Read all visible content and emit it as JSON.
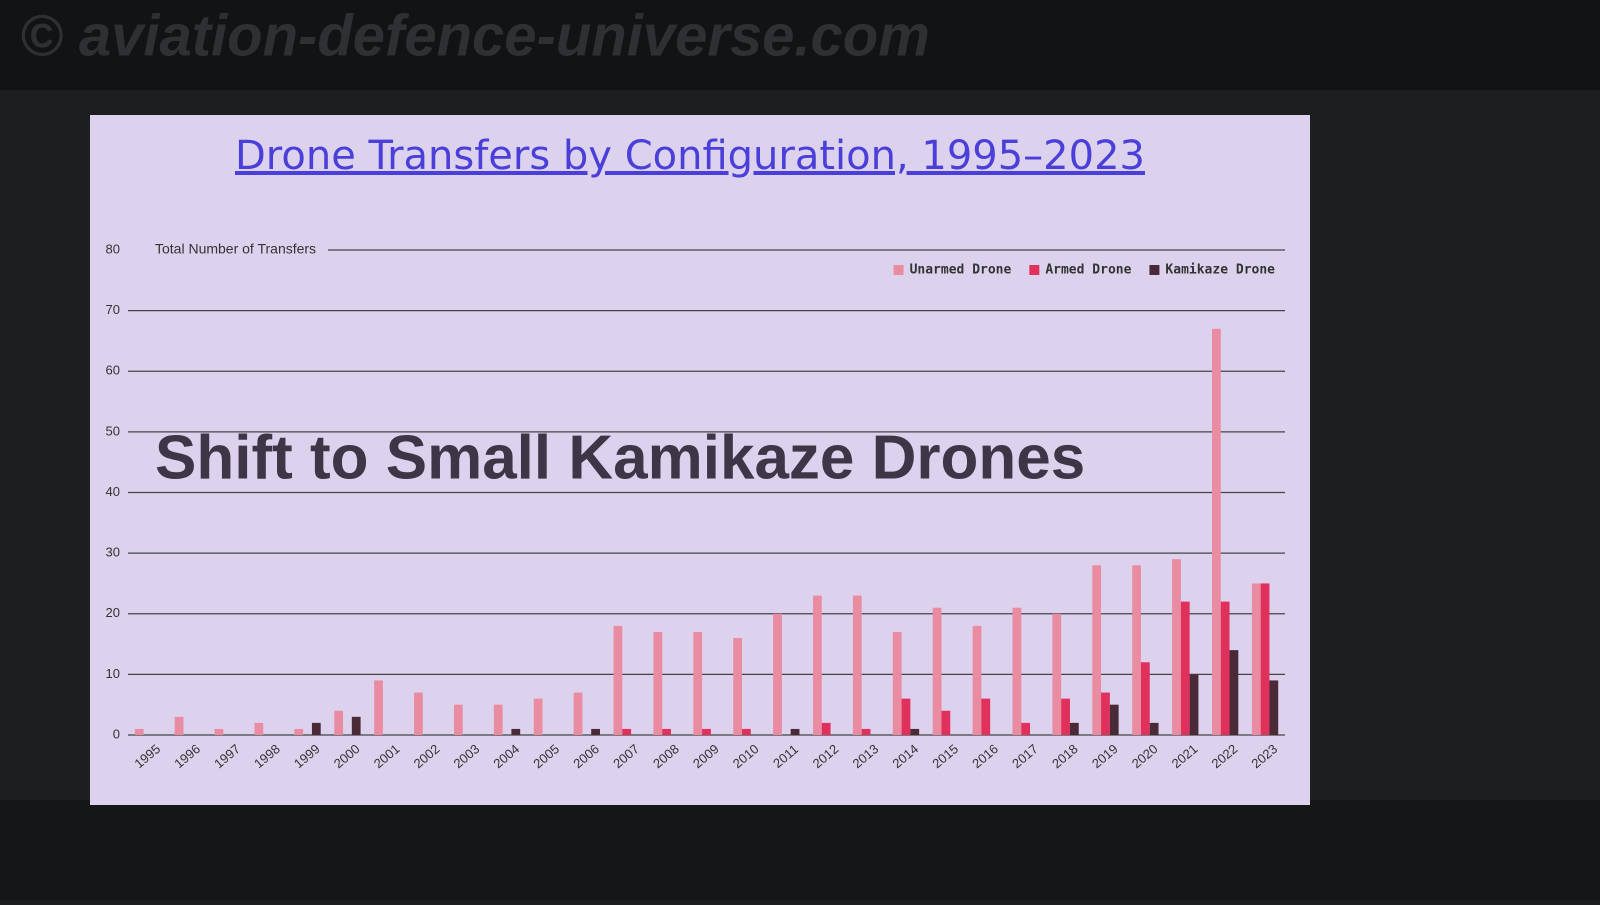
{
  "watermark": "© aviation-defence-universe.com",
  "chart_data": {
    "type": "bar",
    "title": "Drone Transfers by Configuration, 1995–2023",
    "y_label": "Total Number of Transfers",
    "annotation": "Shift to Small Kamikaze Drones",
    "categories": [
      "1995",
      "1996",
      "1997",
      "1998",
      "1999",
      "2000",
      "2001",
      "2002",
      "2003",
      "2004",
      "2005",
      "2006",
      "2007",
      "2008",
      "2009",
      "2010",
      "2011",
      "2012",
      "2013",
      "2014",
      "2015",
      "2016",
      "2017",
      "2018",
      "2019",
      "2020",
      "2021",
      "2022",
      "2023"
    ],
    "series": [
      {
        "name": "Unarmed Drone",
        "color": "#e98ca2",
        "values": [
          1,
          3,
          1,
          2,
          1,
          4,
          9,
          7,
          5,
          5,
          6,
          7,
          18,
          17,
          17,
          16,
          20,
          23,
          23,
          17,
          21,
          18,
          21,
          20,
          28,
          28,
          29,
          67,
          25
        ]
      },
      {
        "name": "Armed Drone",
        "color": "#e0305c",
        "values": [
          0,
          0,
          0,
          0,
          0,
          0,
          0,
          0,
          0,
          0,
          0,
          0,
          1,
          1,
          1,
          1,
          0,
          2,
          1,
          6,
          4,
          6,
          2,
          6,
          7,
          12,
          22,
          22,
          25
        ]
      },
      {
        "name": "Kamikaze Drone",
        "color": "#4a2a36",
        "values": [
          0,
          0,
          0,
          0,
          2,
          3,
          0,
          0,
          0,
          1,
          0,
          1,
          0,
          0,
          0,
          0,
          1,
          0,
          0,
          1,
          0,
          0,
          0,
          2,
          5,
          2,
          10,
          14,
          9
        ]
      }
    ],
    "ylim": [
      0,
      80
    ],
    "yticks": [
      0,
      10,
      20,
      30,
      40,
      50,
      60,
      70,
      80
    ],
    "grid": true,
    "legend": "top-right"
  }
}
